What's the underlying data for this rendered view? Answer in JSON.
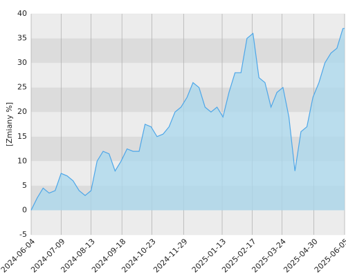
{
  "chart_data": {
    "type": "area",
    "y_label": "[Zmiany %]",
    "x": [
      "2024-06-04",
      "2024-06-11",
      "2024-06-18",
      "2024-06-25",
      "2024-07-02",
      "2024-07-09",
      "2024-07-16",
      "2024-07-23",
      "2024-07-30",
      "2024-08-06",
      "2024-08-13",
      "2024-08-20",
      "2024-08-27",
      "2024-09-03",
      "2024-09-10",
      "2024-09-17",
      "2024-09-24",
      "2024-10-01",
      "2024-10-08",
      "2024-10-15",
      "2024-10-22",
      "2024-10-29",
      "2024-11-05",
      "2024-11-12",
      "2024-11-19",
      "2024-11-26",
      "2024-12-03",
      "2024-12-10",
      "2024-12-17",
      "2024-12-24",
      "2024-12-31",
      "2025-01-07",
      "2025-01-14",
      "2025-01-21",
      "2025-01-28",
      "2025-02-04",
      "2025-02-11",
      "2025-02-18",
      "2025-02-25",
      "2025-03-04",
      "2025-03-11",
      "2025-03-18",
      "2025-03-25",
      "2025-04-01",
      "2025-04-08",
      "2025-04-15",
      "2025-04-22",
      "2025-04-29",
      "2025-05-06",
      "2025-05-13",
      "2025-05-20",
      "2025-05-27",
      "2025-06-03",
      "2025-06-05"
    ],
    "values": [
      0,
      2.5,
      4.5,
      3.5,
      4,
      7.5,
      7,
      6,
      4,
      3,
      4,
      10,
      12,
      11.5,
      8,
      10,
      12.5,
      12,
      12,
      17.5,
      17,
      15,
      15.5,
      17,
      20,
      21,
      23,
      26,
      25,
      21,
      20,
      21,
      19,
      24,
      28,
      28,
      35,
      36,
      27,
      26,
      21,
      24,
      25,
      19,
      8,
      16,
      17,
      23,
      26,
      30,
      32,
      33,
      37,
      37
    ],
    "line_color": "#4da6e8",
    "fill_color": "#a9d8ee",
    "xlim": [
      "2024-06-04",
      "2025-06-05"
    ],
    "xticks": [
      "2024-06-04",
      "2024-07-09",
      "2024-08-13",
      "2024-09-18",
      "2024-10-23",
      "2024-11-29",
      "2025-01-13",
      "2025-02-17",
      "2025-03-24",
      "2025-04-30",
      "2025-06-05"
    ],
    "ylim": [
      -5,
      40
    ],
    "yticks": [
      -5,
      0,
      5,
      10,
      15,
      20,
      25,
      30,
      35,
      40
    ],
    "grid": true
  }
}
